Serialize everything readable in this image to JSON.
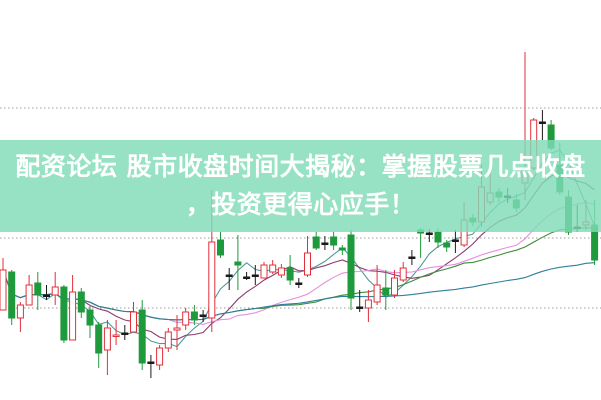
{
  "banner": {
    "line1": "配资论坛 股市收盘时间大揭秘：掌握股票几点收盘",
    "line2": "，投资更得心应手！"
  },
  "chart_data": {
    "type": "candlestick",
    "title": "",
    "xlabel": "",
    "ylabel": "",
    "ylim": [
      0,
      20
    ],
    "grid": "dotted horizontal",
    "colors": {
      "up": "#e0303a",
      "down": "#1e9a3c",
      "doji": "#1a1a1a",
      "grid": "#9a9a9a",
      "ma": [
        "#4f9a98",
        "#8e3b6e",
        "#e88ee0",
        "#3c8c3c",
        "#2f7f9c"
      ]
    },
    "gridlines": [
      14.6,
      8.1,
      4.6
    ],
    "candles_ohlc": [
      [
        4.5,
        7.1,
        4.5,
        6.5
      ],
      [
        6.4,
        6.5,
        3.75,
        4.1
      ],
      [
        4.1,
        4.9,
        3.4,
        4.75
      ],
      [
        4.75,
        6.25,
        4.75,
        5.75
      ],
      [
        5.85,
        6.4,
        4.5,
        5.25
      ],
      [
        5.25,
        5.75,
        5.0,
        5.25
      ],
      [
        5.25,
        6.4,
        4.75,
        5.65
      ],
      [
        5.65,
        5.75,
        2.85,
        3.0
      ],
      [
        3.0,
        6.25,
        3.0,
        5.4
      ],
      [
        5.4,
        5.6,
        4.1,
        4.4
      ],
      [
        4.5,
        4.75,
        3.1,
        3.75
      ],
      [
        3.75,
        3.9,
        1.6,
        2.35
      ],
      [
        2.5,
        4.0,
        1.25,
        3.6
      ],
      [
        3.2,
        4.0,
        2.75,
        3.25
      ],
      [
        3.35,
        3.75,
        3.0,
        3.35
      ],
      [
        3.4,
        4.9,
        3.4,
        4.4
      ],
      [
        4.5,
        5.0,
        1.5,
        1.85
      ],
      [
        1.9,
        2.25,
        1.1,
        1.9
      ],
      [
        1.75,
        2.75,
        1.5,
        2.6
      ],
      [
        2.6,
        3.6,
        2.4,
        3.4
      ],
      [
        3.5,
        4.25,
        2.5,
        3.6
      ],
      [
        3.75,
        4.6,
        3.5,
        4.4
      ],
      [
        4.4,
        4.75,
        3.75,
        4.0
      ],
      [
        4.25,
        4.5,
        3.9,
        4.25
      ],
      [
        4.1,
        10.5,
        3.4,
        7.9
      ],
      [
        8.0,
        8.4,
        7.1,
        7.25
      ],
      [
        6.25,
        6.6,
        5.5,
        6.25
      ],
      [
        6.9,
        8.25,
        5.5,
        6.75
      ],
      [
        6.15,
        6.4,
        6.0,
        6.15
      ],
      [
        6.25,
        6.75,
        5.75,
        6.25
      ],
      [
        6.1,
        6.9,
        6.1,
        6.75
      ],
      [
        6.4,
        7.0,
        6.3,
        6.75
      ],
      [
        6.25,
        6.8,
        6.1,
        6.6
      ],
      [
        6.6,
        7.25,
        5.75,
        6.0
      ],
      [
        5.85,
        6.1,
        5.6,
        5.85
      ],
      [
        6.25,
        8.2,
        6.15,
        7.35
      ],
      [
        8.15,
        8.4,
        7.5,
        7.6
      ],
      [
        7.85,
        8.2,
        7.5,
        7.85
      ],
      [
        8.15,
        8.4,
        7.5,
        7.75
      ],
      [
        7.6,
        7.75,
        7.25,
        7.5
      ],
      [
        8.25,
        8.5,
        4.5,
        5.1
      ],
      [
        4.65,
        5.5,
        4.4,
        4.65
      ],
      [
        4.6,
        5.5,
        3.9,
        5.0
      ],
      [
        4.9,
        6.75,
        4.75,
        5.75
      ],
      [
        5.6,
        6.5,
        4.5,
        5.25
      ],
      [
        5.25,
        6.5,
        5.1,
        6.1
      ],
      [
        6.0,
        6.9,
        5.9,
        6.6
      ],
      [
        7.15,
        7.5,
        6.75,
        7.15
      ],
      [
        8.5,
        8.6,
        7.1,
        8.35
      ],
      [
        8.35,
        8.55,
        7.9,
        8.35
      ],
      [
        8.4,
        8.6,
        7.6,
        7.9
      ],
      [
        7.85,
        8.0,
        7.4,
        7.65
      ],
      [
        8.0,
        8.5,
        7.35,
        8.0
      ],
      [
        7.75,
        9.9,
        7.65,
        9.0
      ],
      [
        9.1,
        9.3,
        8.7,
        8.9
      ],
      [
        8.9,
        11.8,
        8.65,
        10.65
      ],
      [
        9.9,
        11.4,
        9.75,
        10.35
      ],
      [
        10.4,
        10.6,
        9.9,
        10.15
      ],
      [
        10.2,
        10.6,
        9.85,
        10.2
      ],
      [
        10.0,
        10.3,
        9.4,
        9.6
      ],
      [
        10.85,
        17.4,
        10.0,
        11.6
      ],
      [
        11.6,
        14.1,
        11.5,
        14.0
      ],
      [
        13.9,
        14.5,
        13.0,
        13.9
      ],
      [
        13.75,
        14.0,
        12.5,
        12.6
      ],
      [
        11.75,
        12.85,
        10.25,
        10.4
      ],
      [
        10.15,
        10.5,
        8.25,
        8.4
      ],
      [
        8.65,
        9.75,
        8.4,
        8.65
      ],
      [
        8.75,
        10.0,
        8.5,
        8.9
      ],
      [
        8.75,
        10.0,
        6.75,
        7.0
      ]
    ]
  }
}
